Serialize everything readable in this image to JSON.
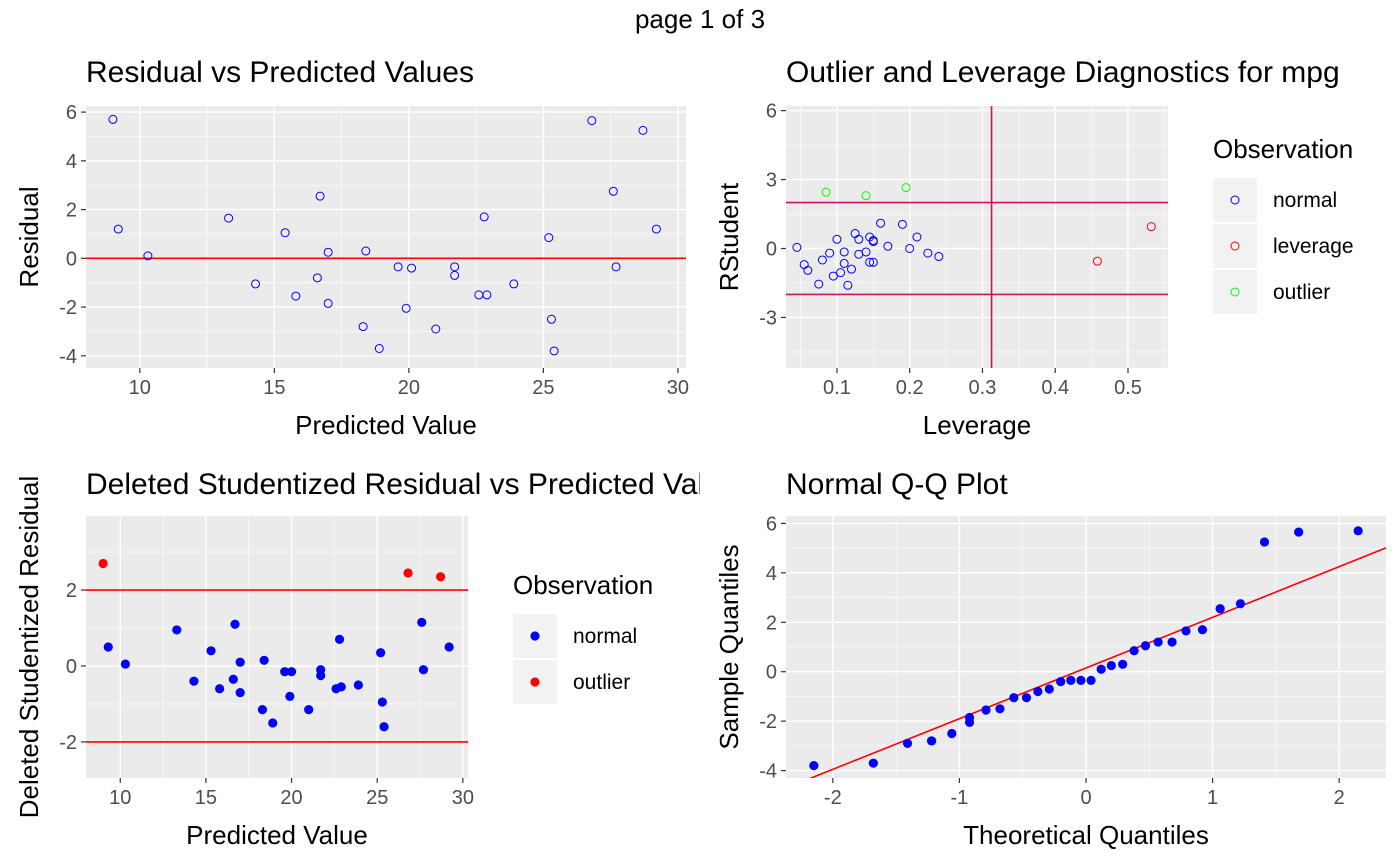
{
  "page_title": "page 1 of 3",
  "colors": {
    "panel_bg": "#EBEBEB",
    "grid": "#FFFFFF",
    "normal": "#0000FF",
    "outlier": "#FF0000",
    "leverage": "#FF0000",
    "outlier_green": "#00FF00",
    "ref_line": "#FF0000",
    "ref_line_lev": "#C2185B"
  },
  "chart_data": [
    {
      "id": "resid-vs-pred",
      "type": "scatter",
      "title": "Residual vs Predicted Values",
      "xlabel": "Predicted Value",
      "ylabel": "Residual",
      "xlim": [
        8,
        30.3
      ],
      "ylim": [
        -4.5,
        6.25
      ],
      "xticks": [
        10,
        15,
        20,
        25,
        30
      ],
      "yticks": [
        -4,
        -2,
        0,
        2,
        4,
        6
      ],
      "hline": [
        0
      ],
      "marker": "hollow",
      "series": [
        {
          "color": "#0000FF",
          "x": [
            9.0,
            9.2,
            10.3,
            13.3,
            14.3,
            15.4,
            15.8,
            16.6,
            16.7,
            17.0,
            17.0,
            18.3,
            18.4,
            18.9,
            19.6,
            19.9,
            20.1,
            21.0,
            21.7,
            21.7,
            22.6,
            22.8,
            22.9,
            23.9,
            25.2,
            25.3,
            25.4,
            26.8,
            27.6,
            27.7,
            28.7,
            29.2
          ],
          "y": [
            5.7,
            1.2,
            0.1,
            1.65,
            -1.05,
            1.05,
            -1.55,
            -0.8,
            2.55,
            -1.85,
            0.25,
            -2.8,
            0.3,
            -3.7,
            -0.35,
            -2.05,
            -0.4,
            -2.9,
            -0.35,
            -0.7,
            -1.5,
            1.7,
            -1.5,
            -1.05,
            0.85,
            -2.5,
            -3.8,
            5.65,
            2.75,
            -0.35,
            5.25,
            1.2
          ]
        }
      ]
    },
    {
      "id": "outlier-leverage",
      "type": "scatter",
      "title": "Outlier and Leverage Diagnostics for mpg",
      "xlabel": "Leverage",
      "ylabel": "RStudent",
      "xlim": [
        0.03,
        0.555
      ],
      "ylim": [
        -5.2,
        6.2
      ],
      "xticks": [
        0.1,
        0.2,
        0.3,
        0.4,
        0.5
      ],
      "xticklabels": [
        "0.1",
        "0.2",
        "0.3",
        "0.4",
        "0.5"
      ],
      "yticks": [
        -3,
        0,
        3,
        6
      ],
      "hline": [
        2,
        -2
      ],
      "vline": [
        0.3125
      ],
      "marker": "hollow",
      "legend": {
        "title": "Observation",
        "position": "right",
        "entries": [
          "normal",
          "leverage",
          "outlier"
        ]
      },
      "series": [
        {
          "name": "normal",
          "color": "#0000FF",
          "x": [
            0.045,
            0.055,
            0.06,
            0.075,
            0.08,
            0.09,
            0.095,
            0.1,
            0.105,
            0.11,
            0.11,
            0.115,
            0.12,
            0.125,
            0.13,
            0.13,
            0.14,
            0.145,
            0.145,
            0.15,
            0.15,
            0.16,
            0.17,
            0.19,
            0.2,
            0.21,
            0.225,
            0.24,
            0.15
          ],
          "y": [
            0.05,
            -0.7,
            -0.95,
            -1.55,
            -0.5,
            -0.2,
            -1.2,
            0.4,
            -1.05,
            -0.65,
            -0.15,
            -1.6,
            -0.9,
            0.65,
            -0.25,
            0.4,
            -0.15,
            0.5,
            -0.6,
            0.3,
            -0.6,
            1.1,
            0.1,
            1.05,
            0.0,
            0.5,
            -0.2,
            -0.35,
            0.35
          ]
        },
        {
          "name": "leverage",
          "color": "#FF0000",
          "x": [
            0.458,
            0.532
          ],
          "y": [
            -0.55,
            0.95
          ]
        },
        {
          "name": "outlier",
          "color": "#00FF00",
          "x": [
            0.085,
            0.14,
            0.195
          ],
          "y": [
            2.45,
            2.3,
            2.65
          ]
        }
      ]
    },
    {
      "id": "deleted-student",
      "type": "scatter",
      "title": "Deleted Studentized Residual vs Predicted Value",
      "xlabel": "Predicted Value",
      "ylabel": "Deleted Studentized Residual",
      "xlim": [
        8,
        30.3
      ],
      "ylim": [
        -2.95,
        3.95
      ],
      "xticks": [
        10,
        15,
        20,
        25,
        30
      ],
      "yticks": [
        -2,
        0,
        2
      ],
      "hline": [
        2,
        -2
      ],
      "marker": "filled",
      "legend": {
        "title": "Observation",
        "position": "right",
        "entries": [
          "normal",
          "outlier"
        ]
      },
      "series": [
        {
          "name": "normal",
          "color": "#0000FF",
          "x": [
            9.3,
            10.3,
            13.3,
            14.3,
            15.3,
            15.8,
            16.6,
            16.7,
            17.0,
            17.0,
            18.3,
            18.4,
            18.9,
            19.6,
            19.9,
            20.0,
            21.0,
            21.7,
            21.7,
            22.6,
            22.8,
            22.9,
            23.9,
            25.2,
            25.3,
            25.4,
            27.6,
            27.7,
            29.2
          ],
          "y": [
            0.5,
            0.05,
            0.95,
            -0.4,
            0.4,
            -0.6,
            -0.35,
            1.1,
            0.1,
            -0.7,
            -1.15,
            0.15,
            -1.5,
            -0.15,
            -0.8,
            -0.15,
            -1.15,
            -0.1,
            -0.25,
            -0.6,
            0.7,
            -0.55,
            -0.5,
            0.35,
            -0.95,
            -1.6,
            1.15,
            -0.1,
            0.5
          ]
        },
        {
          "name": "outlier",
          "color": "#FF0000",
          "x": [
            9.0,
            26.8,
            28.7
          ],
          "y": [
            2.7,
            2.45,
            2.35
          ]
        }
      ]
    },
    {
      "id": "qq-plot",
      "type": "scatter",
      "title": "Normal Q-Q Plot",
      "xlabel": "Theoretical Quantiles",
      "ylabel": "Sample Quantiles",
      "xlim": [
        -2.37,
        2.37
      ],
      "ylim": [
        -4.3,
        6.3
      ],
      "xticks": [
        -2,
        -1,
        0,
        1,
        2
      ],
      "yticks": [
        -4,
        -2,
        0,
        2,
        4,
        6
      ],
      "marker": "filled",
      "ref_line": {
        "intercept": 0.15,
        "slope": 2.05
      },
      "series": [
        {
          "color": "#0000FF",
          "x": [
            -2.15,
            -1.68,
            -1.41,
            -1.22,
            -1.06,
            -0.92,
            -0.79,
            -0.68,
            -0.57,
            -0.47,
            -0.38,
            -0.29,
            -0.2,
            -0.12,
            -0.04,
            0.04,
            0.12,
            0.2,
            0.29,
            0.38,
            0.47,
            0.57,
            0.68,
            0.79,
            0.92,
            1.06,
            1.22,
            1.41,
            1.68,
            2.15,
            -0.92,
            -1.22
          ],
          "y": [
            -3.8,
            -3.7,
            -2.9,
            -2.8,
            -2.5,
            -2.05,
            -1.55,
            -1.5,
            -1.05,
            -1.05,
            -0.8,
            -0.7,
            -0.4,
            -0.35,
            -0.35,
            -0.35,
            0.1,
            0.25,
            0.3,
            0.85,
            1.05,
            1.2,
            1.2,
            1.65,
            1.7,
            2.55,
            2.75,
            5.25,
            5.65,
            5.7,
            -1.85,
            -2.8
          ]
        }
      ]
    }
  ]
}
